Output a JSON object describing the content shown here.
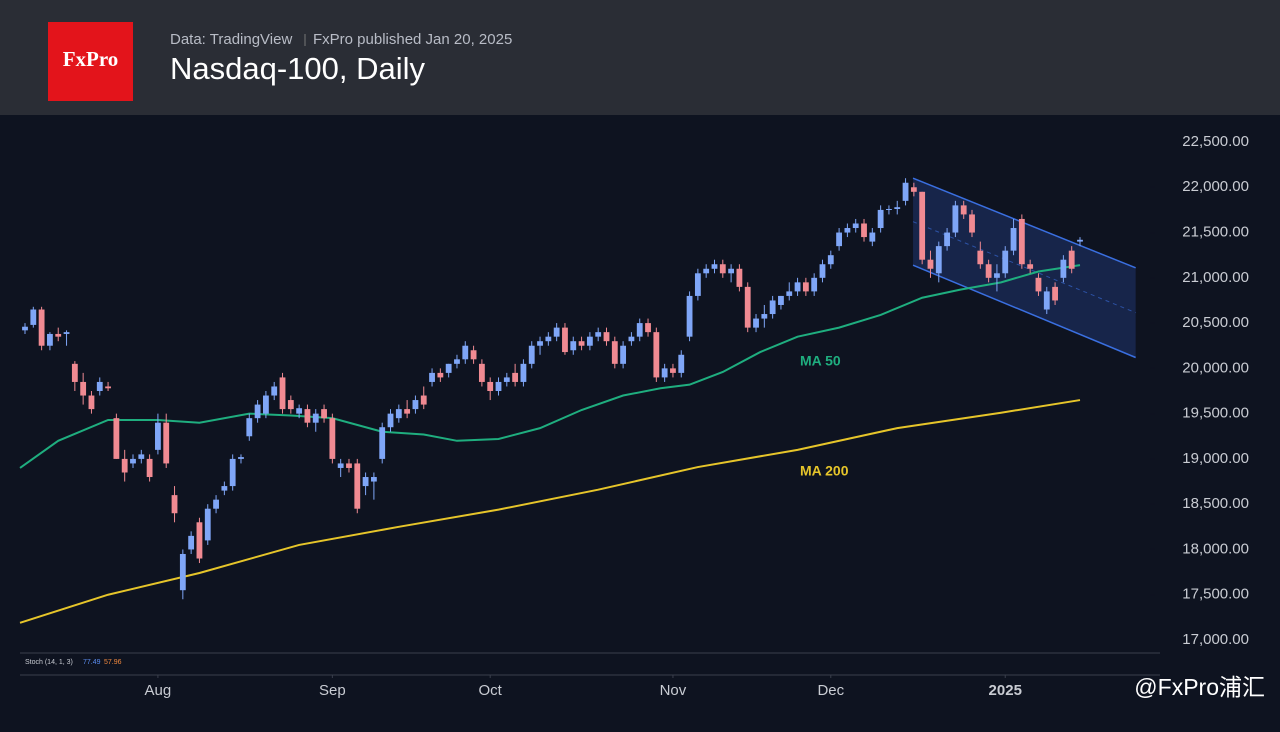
{
  "header": {
    "logo": "FxPro",
    "source": "Data: TradingView",
    "published": "FxPro published Jan 20, 2025",
    "title": "Nasdaq-100, Daily"
  },
  "watermark": "@FxPro浦汇",
  "chart_data": {
    "type": "candlestick",
    "colors": {
      "up": "#7fa6f7",
      "down": "#f08a92",
      "ma50": "#1fae7f",
      "ma200": "#e6c52a",
      "channel": "#3a6fe0"
    },
    "ylim": [
      17000,
      22500
    ],
    "yticks": [
      {
        "value": 17000,
        "label": "17,000.00"
      },
      {
        "value": 17500,
        "label": "17,500.00"
      },
      {
        "value": 18000,
        "label": "18,000.00"
      },
      {
        "value": 18500,
        "label": "18,500.00"
      },
      {
        "value": 19000,
        "label": "19,000.00"
      },
      {
        "value": 19500,
        "label": "19,500.00"
      },
      {
        "value": 20000,
        "label": "20,000.00"
      },
      {
        "value": 20500,
        "label": "20,500.00"
      },
      {
        "value": 21000,
        "label": "21,000.00"
      },
      {
        "value": 21500,
        "label": "21,500.00"
      },
      {
        "value": 22000,
        "label": "22,000.00"
      },
      {
        "value": 22500,
        "label": "22,500.00"
      }
    ],
    "xticks": [
      {
        "value": 16,
        "label": "Aug"
      },
      {
        "value": 37,
        "label": "Sep"
      },
      {
        "value": 56,
        "label": "Oct"
      },
      {
        "value": 78,
        "label": "Nov"
      },
      {
        "value": 97,
        "label": "Dec"
      },
      {
        "value": 118,
        "label": "2025"
      }
    ],
    "candles": [
      [
        20420,
        20500,
        20380,
        20460
      ],
      [
        20480,
        20680,
        20450,
        20650
      ],
      [
        20650,
        20680,
        20200,
        20250
      ],
      [
        20250,
        20400,
        20200,
        20380
      ],
      [
        20380,
        20450,
        20300,
        20350
      ],
      [
        20380,
        20420,
        20250,
        20400
      ],
      [
        20050,
        20080,
        19750,
        19850
      ],
      [
        19850,
        19950,
        19600,
        19700
      ],
      [
        19700,
        19750,
        19500,
        19550
      ],
      [
        19750,
        19900,
        19700,
        19850
      ],
      [
        19800,
        19850,
        19750,
        19780
      ],
      [
        19450,
        19500,
        19000,
        19000
      ],
      [
        19000,
        19100,
        18750,
        18850
      ],
      [
        18950,
        19050,
        18900,
        19000
      ],
      [
        19000,
        19100,
        18950,
        19050
      ],
      [
        19000,
        19050,
        18750,
        18800
      ],
      [
        19100,
        19500,
        19050,
        19400
      ],
      [
        19400,
        19500,
        18900,
        18950
      ],
      [
        18600,
        18700,
        18300,
        18400
      ],
      [
        17550,
        18000,
        17450,
        17950
      ],
      [
        18000,
        18200,
        17950,
        18150
      ],
      [
        18300,
        18350,
        17850,
        17900
      ],
      [
        18100,
        18500,
        18050,
        18450
      ],
      [
        18450,
        18600,
        18400,
        18550
      ],
      [
        18650,
        18750,
        18600,
        18700
      ],
      [
        18700,
        19050,
        18650,
        19000
      ],
      [
        19000,
        19050,
        18950,
        19020
      ],
      [
        19250,
        19500,
        19200,
        19450
      ],
      [
        19450,
        19650,
        19400,
        19600
      ],
      [
        19500,
        19750,
        19450,
        19700
      ],
      [
        19700,
        19850,
        19650,
        19800
      ],
      [
        19900,
        19950,
        19500,
        19550
      ],
      [
        19650,
        19700,
        19500,
        19550
      ],
      [
        19500,
        19600,
        19450,
        19560
      ],
      [
        19550,
        19600,
        19350,
        19400
      ],
      [
        19400,
        19550,
        19300,
        19500
      ],
      [
        19550,
        19600,
        19400,
        19450
      ],
      [
        19450,
        19500,
        18950,
        19000
      ],
      [
        18900,
        19000,
        18800,
        18950
      ],
      [
        18950,
        19000,
        18850,
        18900
      ],
      [
        18950,
        19000,
        18400,
        18450
      ],
      [
        18700,
        18850,
        18600,
        18800
      ],
      [
        18750,
        18850,
        18550,
        18800
      ],
      [
        19000,
        19400,
        18950,
        19350
      ],
      [
        19350,
        19550,
        19300,
        19500
      ],
      [
        19450,
        19600,
        19400,
        19550
      ],
      [
        19550,
        19650,
        19450,
        19500
      ],
      [
        19550,
        19700,
        19500,
        19650
      ],
      [
        19700,
        19800,
        19550,
        19600
      ],
      [
        19850,
        20000,
        19800,
        19950
      ],
      [
        19950,
        20000,
        19850,
        19900
      ],
      [
        19950,
        20050,
        19900,
        20050
      ],
      [
        20050,
        20150,
        20000,
        20100
      ],
      [
        20100,
        20300,
        20050,
        20250
      ],
      [
        20200,
        20250,
        20050,
        20100
      ],
      [
        20050,
        20100,
        19800,
        19850
      ],
      [
        19850,
        19900,
        19650,
        19750
      ],
      [
        19750,
        19900,
        19700,
        19850
      ],
      [
        19850,
        19950,
        19800,
        19900
      ],
      [
        19950,
        20050,
        19800,
        19850
      ],
      [
        19850,
        20100,
        19800,
        20050
      ],
      [
        20050,
        20300,
        20000,
        20250
      ],
      [
        20250,
        20350,
        20150,
        20300
      ],
      [
        20300,
        20400,
        20250,
        20350
      ],
      [
        20350,
        20500,
        20300,
        20450
      ],
      [
        20450,
        20500,
        20150,
        20180
      ],
      [
        20200,
        20350,
        20150,
        20300
      ],
      [
        20300,
        20350,
        20200,
        20250
      ],
      [
        20250,
        20400,
        20200,
        20350
      ],
      [
        20350,
        20450,
        20300,
        20400
      ],
      [
        20400,
        20450,
        20250,
        20300
      ],
      [
        20300,
        20350,
        20000,
        20050
      ],
      [
        20050,
        20300,
        20000,
        20250
      ],
      [
        20300,
        20400,
        20250,
        20350
      ],
      [
        20350,
        20550,
        20300,
        20500
      ],
      [
        20500,
        20550,
        20350,
        20400
      ],
      [
        20400,
        20450,
        19850,
        19900
      ],
      [
        19900,
        20050,
        19850,
        20000
      ],
      [
        20000,
        20050,
        19900,
        19950
      ],
      [
        19950,
        20200,
        19900,
        20150
      ],
      [
        20350,
        20850,
        20300,
        20800
      ],
      [
        20800,
        21100,
        20750,
        21050
      ],
      [
        21050,
        21150,
        21000,
        21100
      ],
      [
        21100,
        21200,
        21050,
        21150
      ],
      [
        21150,
        21200,
        21000,
        21050
      ],
      [
        21050,
        21150,
        20950,
        21100
      ],
      [
        21100,
        21150,
        20850,
        20900
      ],
      [
        20900,
        20950,
        20400,
        20450
      ],
      [
        20450,
        20600,
        20400,
        20550
      ],
      [
        20550,
        20700,
        20450,
        20600
      ],
      [
        20600,
        20800,
        20550,
        20750
      ],
      [
        20700,
        20800,
        20650,
        20800
      ],
      [
        20800,
        20950,
        20750,
        20850
      ],
      [
        20850,
        21000,
        20800,
        20950
      ],
      [
        20950,
        21000,
        20800,
        20850
      ],
      [
        20850,
        21050,
        20800,
        21000
      ],
      [
        21000,
        21200,
        20950,
        21150
      ],
      [
        21150,
        21300,
        21100,
        21250
      ],
      [
        21350,
        21550,
        21300,
        21500
      ],
      [
        21500,
        21600,
        21450,
        21550
      ],
      [
        21550,
        21650,
        21500,
        21600
      ],
      [
        21600,
        21650,
        21400,
        21450
      ],
      [
        21400,
        21550,
        21350,
        21500
      ],
      [
        21550,
        21800,
        21500,
        21750
      ],
      [
        21750,
        21800,
        21700,
        21760
      ],
      [
        21760,
        21850,
        21700,
        21780
      ],
      [
        21850,
        22100,
        21800,
        22050
      ],
      [
        22000,
        22050,
        21900,
        21950
      ],
      [
        21950,
        21950,
        21150,
        21200
      ],
      [
        21200,
        21300,
        21000,
        21100
      ],
      [
        21050,
        21400,
        20950,
        21350
      ],
      [
        21350,
        21550,
        21300,
        21500
      ],
      [
        21500,
        21850,
        21450,
        21800
      ],
      [
        21800,
        21850,
        21650,
        21700
      ],
      [
        21700,
        21750,
        21450,
        21500
      ],
      [
        21300,
        21400,
        21100,
        21150
      ],
      [
        21150,
        21200,
        20950,
        21000
      ],
      [
        21000,
        21150,
        20850,
        21050
      ],
      [
        21050,
        21350,
        21000,
        21300
      ],
      [
        21300,
        21650,
        21250,
        21550
      ],
      [
        21650,
        21700,
        21100,
        21150
      ],
      [
        21150,
        21200,
        21050,
        21100
      ],
      [
        21000,
        21050,
        20800,
        20850
      ],
      [
        20650,
        20900,
        20600,
        20850
      ],
      [
        20900,
        20950,
        20700,
        20750
      ],
      [
        21000,
        21250,
        20950,
        21200
      ],
      [
        21300,
        21350,
        21050,
        21100
      ],
      [
        21400,
        21450,
        21350,
        21420
      ]
    ],
    "ma50": {
      "name": "MA 50",
      "x": [
        -0.6,
        4,
        10,
        16,
        21,
        27,
        32,
        37,
        43,
        48,
        52,
        57,
        62,
        67,
        72,
        76.5,
        80,
        84,
        88.5,
        93,
        98,
        103,
        108,
        112.6,
        117.5,
        122,
        127
      ],
      "values": [
        18900,
        19200,
        19430,
        19430,
        19400,
        19500,
        19480,
        19450,
        19300,
        19270,
        19200,
        19220,
        19340,
        19540,
        19700,
        19780,
        19820,
        19960,
        20180,
        20350,
        20450,
        20590,
        20780,
        20870,
        20950,
        21070,
        21140
      ]
    },
    "ma200": {
      "name": "MA 200",
      "x": [
        -0.6,
        10,
        21,
        33,
        45,
        57,
        69,
        81,
        93,
        105,
        117.5,
        127
      ],
      "values": [
        17190,
        17500,
        17740,
        18050,
        18250,
        18440,
        18660,
        18910,
        19100,
        19340,
        19510,
        19650
      ]
    },
    "channel": {
      "x": [
        106.9,
        133.7
      ],
      "upper": [
        22100,
        21110
      ],
      "middle": [
        21620,
        20615
      ],
      "lower": [
        21140,
        20120
      ]
    },
    "indicator": {
      "name": "Stoch (14, 1, 3)",
      "k": "77.49",
      "d": "57.96"
    }
  }
}
